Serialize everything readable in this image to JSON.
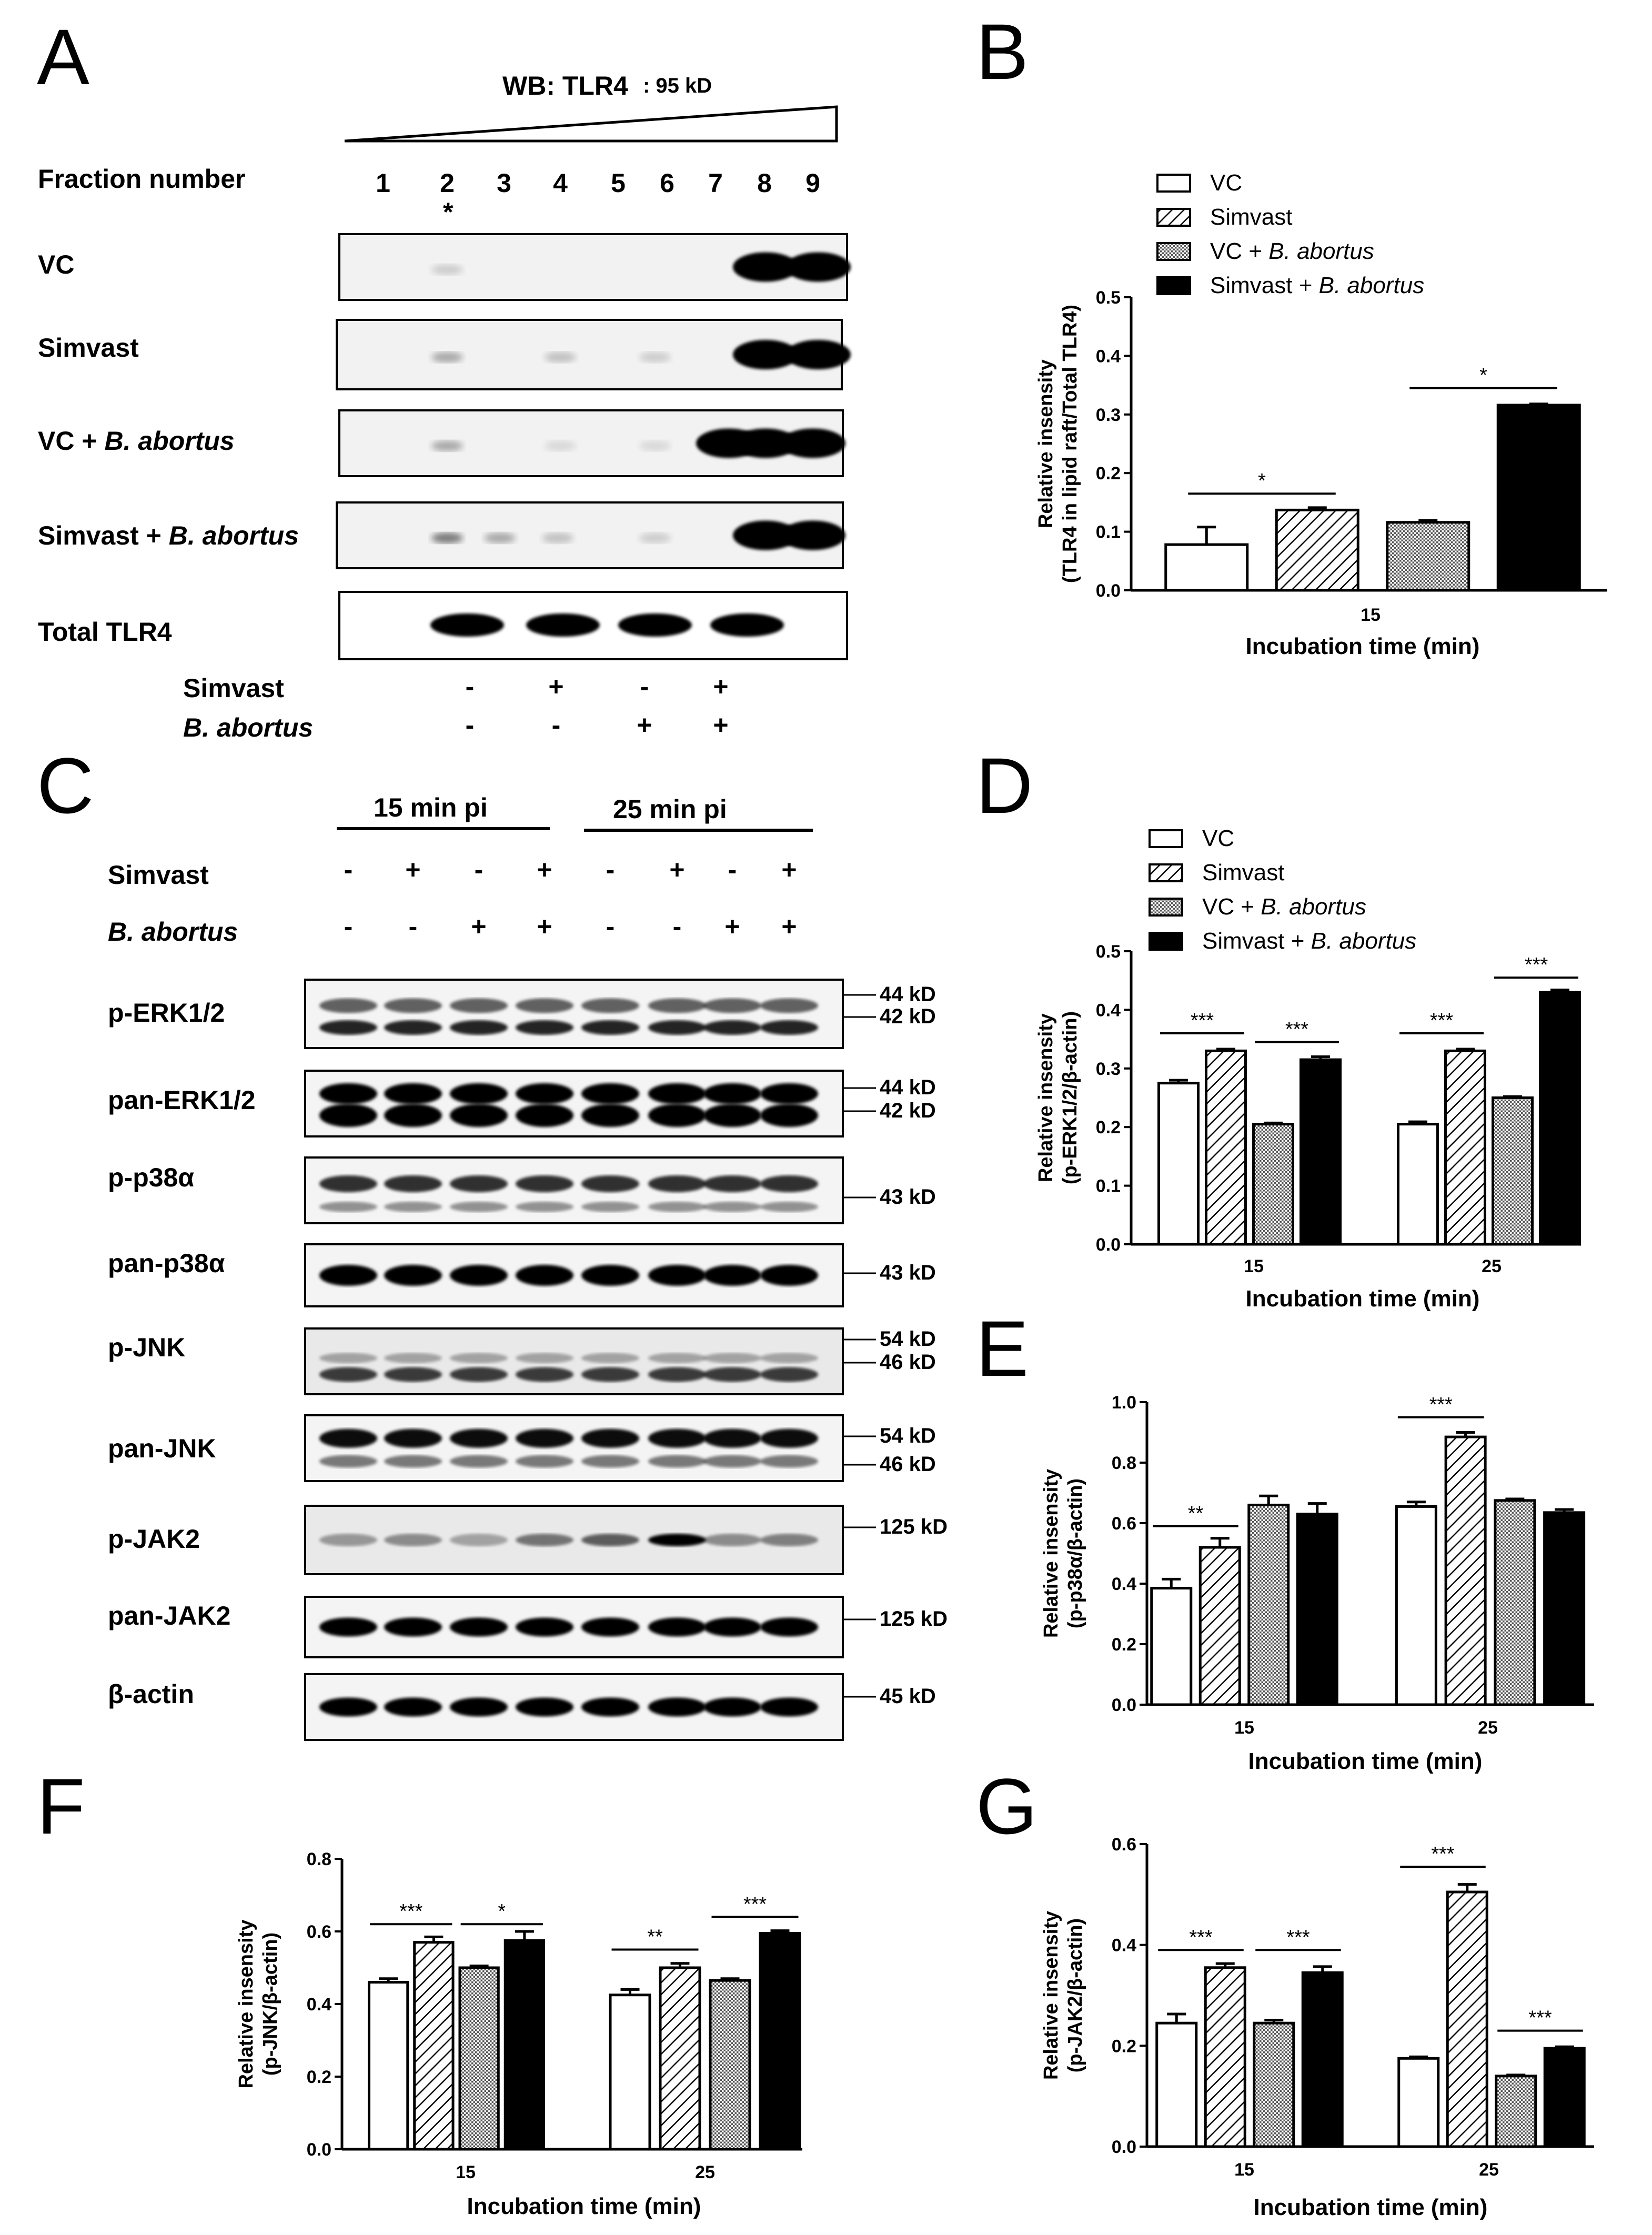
{
  "panels": {
    "A": "A",
    "B": "B",
    "C": "C",
    "D": "D",
    "E": "E",
    "F": "F",
    "G": "G"
  },
  "panel_a": {
    "wb_title": "WB: TLR4",
    "wb_kd": ": 95 kD",
    "fraction_label": "Fraction number",
    "fractions": [
      "1",
      "2",
      "3",
      "4",
      "5",
      "6",
      "7",
      "8",
      "9"
    ],
    "asterisk": "*",
    "rows": [
      "VC",
      "Simvast",
      "VC + ",
      "Simvast + ",
      "Total TLR4"
    ],
    "italic_species": "B. abortus",
    "simvast_label": "Simvast",
    "babortus_label": "B. abortus",
    "simvast_signs": [
      "-",
      "+",
      "-",
      "+"
    ],
    "babortus_signs": [
      "-",
      "-",
      "+",
      "+"
    ]
  },
  "panel_c": {
    "time_15": "15 min pi",
    "time_25": "25 min pi",
    "simvast_label": "Simvast",
    "babortus_label": "B. abortus",
    "simvast_signs": [
      "-",
      "+",
      "-",
      "+",
      "-",
      "+",
      "-",
      "+"
    ],
    "babortus_signs": [
      "-",
      "-",
      "+",
      "+",
      "-",
      "-",
      "+",
      "+"
    ],
    "blots": [
      {
        "name": "p-ERK1/2",
        "kd": [
          "44 kD",
          "42 kD"
        ]
      },
      {
        "name": "pan-ERK1/2",
        "kd": [
          "44 kD",
          "42 kD"
        ]
      },
      {
        "name": "p-p38α",
        "kd": [
          "43 kD"
        ]
      },
      {
        "name": "pan-p38α",
        "kd": [
          "43 kD"
        ]
      },
      {
        "name": "p-JNK",
        "kd": [
          "54 kD",
          "46 kD"
        ]
      },
      {
        "name": "pan-JNK",
        "kd": [
          "54 kD",
          "46 kD"
        ]
      },
      {
        "name": "p-JAK2",
        "kd": [
          "125 kD"
        ]
      },
      {
        "name": "pan-JAK2",
        "kd": [
          "125 kD"
        ]
      },
      {
        "name": "β-actin",
        "kd": [
          "45 kD"
        ]
      }
    ]
  },
  "legend_items": [
    "VC",
    "Simvast",
    "VC + ",
    "Simvast + "
  ],
  "legend_italic": "B. abortus",
  "colors": {
    "black": "#000000",
    "white": "#ffffff",
    "gray_dot": "#b8b8b8"
  },
  "chart_data": [
    {
      "id": "B",
      "type": "bar",
      "categories": [
        "15"
      ],
      "series": [
        {
          "name": "VC",
          "values": [
            0.078
          ],
          "err": [
            0.03
          ]
        },
        {
          "name": "Simvast",
          "values": [
            0.137
          ],
          "err": [
            0.004
          ]
        },
        {
          "name": "VC + B. abortus",
          "values": [
            0.116
          ],
          "err": [
            0.003
          ]
        },
        {
          "name": "Simvast + B. abortus",
          "values": [
            0.316
          ],
          "err": [
            0.002
          ]
        }
      ],
      "xlabel": "Incubation  time (min)",
      "ylabel": [
        "Relative insensity",
        "(TLR4 in lipid raft/Total TLR4)"
      ],
      "ylim": [
        0,
        0.5
      ],
      "yticks": [
        "0.0",
        "0.1",
        "0.2",
        "0.3",
        "0.4",
        "0.5"
      ],
      "significance": [
        {
          "from": 0,
          "to": 1,
          "group": 0,
          "label": "*",
          "y": 0.165
        },
        {
          "from": 2,
          "to": 3,
          "group": 0,
          "label": "*",
          "y": 0.345
        }
      ]
    },
    {
      "id": "D",
      "type": "bar",
      "categories": [
        "15",
        "25"
      ],
      "series": [
        {
          "name": "VC",
          "values": [
            0.275,
            0.205
          ],
          "err": [
            0.005,
            0.004
          ]
        },
        {
          "name": "Simvast",
          "values": [
            0.33,
            0.33
          ],
          "err": [
            0.003,
            0.003
          ]
        },
        {
          "name": "VC + B. abortus",
          "values": [
            0.205,
            0.25
          ],
          "err": [
            0.002,
            0.002
          ]
        },
        {
          "name": "Simvast + B. abortus",
          "values": [
            0.315,
            0.43
          ],
          "err": [
            0.005,
            0.004
          ]
        }
      ],
      "xlabel": "Incubation time (min)",
      "ylabel": [
        "Relative insensity",
        "(p-ERK1/2/β-actin)"
      ],
      "ylim": [
        0,
        0.5
      ],
      "yticks": [
        "0.0",
        "0.1",
        "0.2",
        "0.3",
        "0.4",
        "0.5"
      ],
      "significance": [
        {
          "from": 0,
          "to": 1,
          "group": 0,
          "label": "***",
          "y": 0.36
        },
        {
          "from": 2,
          "to": 3,
          "group": 0,
          "label": "***",
          "y": 0.345
        },
        {
          "from": 0,
          "to": 1,
          "group": 1,
          "label": "***",
          "y": 0.36
        },
        {
          "from": 2,
          "to": 3,
          "group": 1,
          "label": "***",
          "y": 0.455
        }
      ]
    },
    {
      "id": "E",
      "type": "bar",
      "categories": [
        "15",
        "25"
      ],
      "series": [
        {
          "name": "VC",
          "values": [
            0.385,
            0.655
          ],
          "err": [
            0.03,
            0.015
          ]
        },
        {
          "name": "Simvast",
          "values": [
            0.52,
            0.885
          ],
          "err": [
            0.03,
            0.015
          ]
        },
        {
          "name": "VC + B. abortus",
          "values": [
            0.66,
            0.675
          ],
          "err": [
            0.03,
            0.005
          ]
        },
        {
          "name": "Simvast + B. abortus",
          "values": [
            0.63,
            0.635
          ],
          "err": [
            0.035,
            0.01
          ]
        }
      ],
      "xlabel": "Incubation time (min)",
      "ylabel": [
        "Relative insensity",
        "(p-p38α/β-actin)"
      ],
      "ylim": [
        0,
        1.0
      ],
      "yticks": [
        "0.0",
        "0.2",
        "0.4",
        "0.6",
        "0.8",
        "1.0"
      ],
      "significance": [
        {
          "from": 0,
          "to": 1,
          "group": 0,
          "label": "**",
          "y": 0.59
        },
        {
          "from": 0,
          "to": 1,
          "group": 1,
          "label": "***",
          "y": 0.95
        }
      ]
    },
    {
      "id": "F",
      "type": "bar",
      "categories": [
        "15",
        "25"
      ],
      "series": [
        {
          "name": "VC",
          "values": [
            0.46,
            0.425
          ],
          "err": [
            0.01,
            0.015
          ]
        },
        {
          "name": "Simvast",
          "values": [
            0.57,
            0.5
          ],
          "err": [
            0.015,
            0.012
          ]
        },
        {
          "name": "VC + B. abortus",
          "values": [
            0.5,
            0.465
          ],
          "err": [
            0.005,
            0.005
          ]
        },
        {
          "name": "Simvast + B. abortus",
          "values": [
            0.575,
            0.595
          ],
          "err": [
            0.025,
            0.007
          ]
        }
      ],
      "xlabel": "Incubation time (min)",
      "ylabel": [
        "Relative insensity",
        "(p-JNK/β-actin)"
      ],
      "ylim": [
        0,
        0.8
      ],
      "yticks": [
        "0.0",
        "0.2",
        "0.4",
        "0.6",
        "0.8"
      ],
      "significance": [
        {
          "from": 0,
          "to": 1,
          "group": 0,
          "label": "***",
          "y": 0.62
        },
        {
          "from": 2,
          "to": 3,
          "group": 0,
          "label": "*",
          "y": 0.62
        },
        {
          "from": 0,
          "to": 1,
          "group": 1,
          "label": "**",
          "y": 0.55
        },
        {
          "from": 2,
          "to": 3,
          "group": 1,
          "label": "***",
          "y": 0.64
        }
      ]
    },
    {
      "id": "G",
      "type": "bar",
      "categories": [
        "15",
        "25"
      ],
      "series": [
        {
          "name": "VC",
          "values": [
            0.245,
            0.175
          ],
          "err": [
            0.018,
            0.003
          ]
        },
        {
          "name": "Simvast",
          "values": [
            0.355,
            0.505
          ],
          "err": [
            0.008,
            0.015
          ]
        },
        {
          "name": "VC + B. abortus",
          "values": [
            0.245,
            0.14
          ],
          "err": [
            0.006,
            0.002
          ]
        },
        {
          "name": "Simvast + B. abortus",
          "values": [
            0.345,
            0.195
          ],
          "err": [
            0.012,
            0.003
          ]
        }
      ],
      "xlabel": "Incubation time (min)",
      "ylabel": [
        "Relative insensity",
        "(p-JAK2/β-actin)"
      ],
      "ylim": [
        0,
        0.6
      ],
      "yticks": [
        "0.0",
        "0.2",
        "0.4",
        "0.6"
      ],
      "significance": [
        {
          "from": 0,
          "to": 1,
          "group": 0,
          "label": "***",
          "y": 0.39
        },
        {
          "from": 2,
          "to": 3,
          "group": 0,
          "label": "***",
          "y": 0.39
        },
        {
          "from": 0,
          "to": 1,
          "group": 1,
          "label": "***",
          "y": 0.555
        },
        {
          "from": 2,
          "to": 3,
          "group": 1,
          "label": "***",
          "y": 0.23
        }
      ]
    }
  ]
}
